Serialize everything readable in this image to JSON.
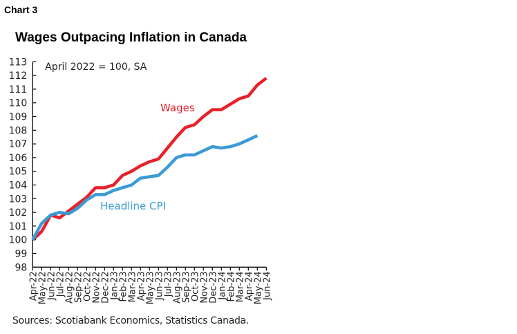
{
  "chart_label": "Chart 3",
  "chart_data": {
    "type": "line",
    "title": "Wages Outpacing Inflation in Canada",
    "annotation": "April 2022 = 100, SA",
    "source": "Sources: Scotiabank Economics, Statistics Canada.",
    "ylim": [
      98,
      113
    ],
    "yticks": [
      98,
      99,
      100,
      101,
      102,
      103,
      104,
      105,
      106,
      107,
      108,
      109,
      110,
      111,
      112,
      113
    ],
    "grid": false,
    "x": [
      "Apr-22",
      "May-22",
      "Jun-22",
      "Jul-22",
      "Aug-22",
      "Sep-22",
      "Oct-22",
      "Nov-22",
      "Dec-22",
      "Jan-23",
      "Feb-23",
      "Mar-23",
      "Apr-23",
      "May-23",
      "Jun-23",
      "Jul-23",
      "Aug-23",
      "Sep-23",
      "Oct-23",
      "Nov-23",
      "Dec-23",
      "Jan-24",
      "Feb-24",
      "Mar-24",
      "Apr-24",
      "May-24",
      "Jun-24"
    ],
    "series": [
      {
        "name": "Wages",
        "color": "#e8202a",
        "values": [
          100.0,
          100.6,
          101.8,
          101.6,
          102.1,
          102.6,
          103.1,
          103.8,
          103.8,
          104.0,
          104.7,
          105.0,
          105.4,
          105.7,
          105.9,
          106.7,
          107.5,
          108.2,
          108.4,
          109.0,
          109.5,
          109.5,
          109.9,
          110.3,
          110.5,
          111.3,
          111.8
        ]
      },
      {
        "name": "Headline CPI",
        "color": "#3a9bd5",
        "values": [
          100.0,
          101.2,
          101.8,
          102.0,
          101.9,
          102.3,
          102.9,
          103.3,
          103.3,
          103.6,
          103.8,
          104.0,
          104.5,
          104.6,
          104.7,
          105.3,
          106.0,
          106.2,
          106.2,
          106.5,
          106.8,
          106.7,
          106.8,
          107.0,
          107.3,
          107.6,
          null
        ]
      }
    ]
  }
}
